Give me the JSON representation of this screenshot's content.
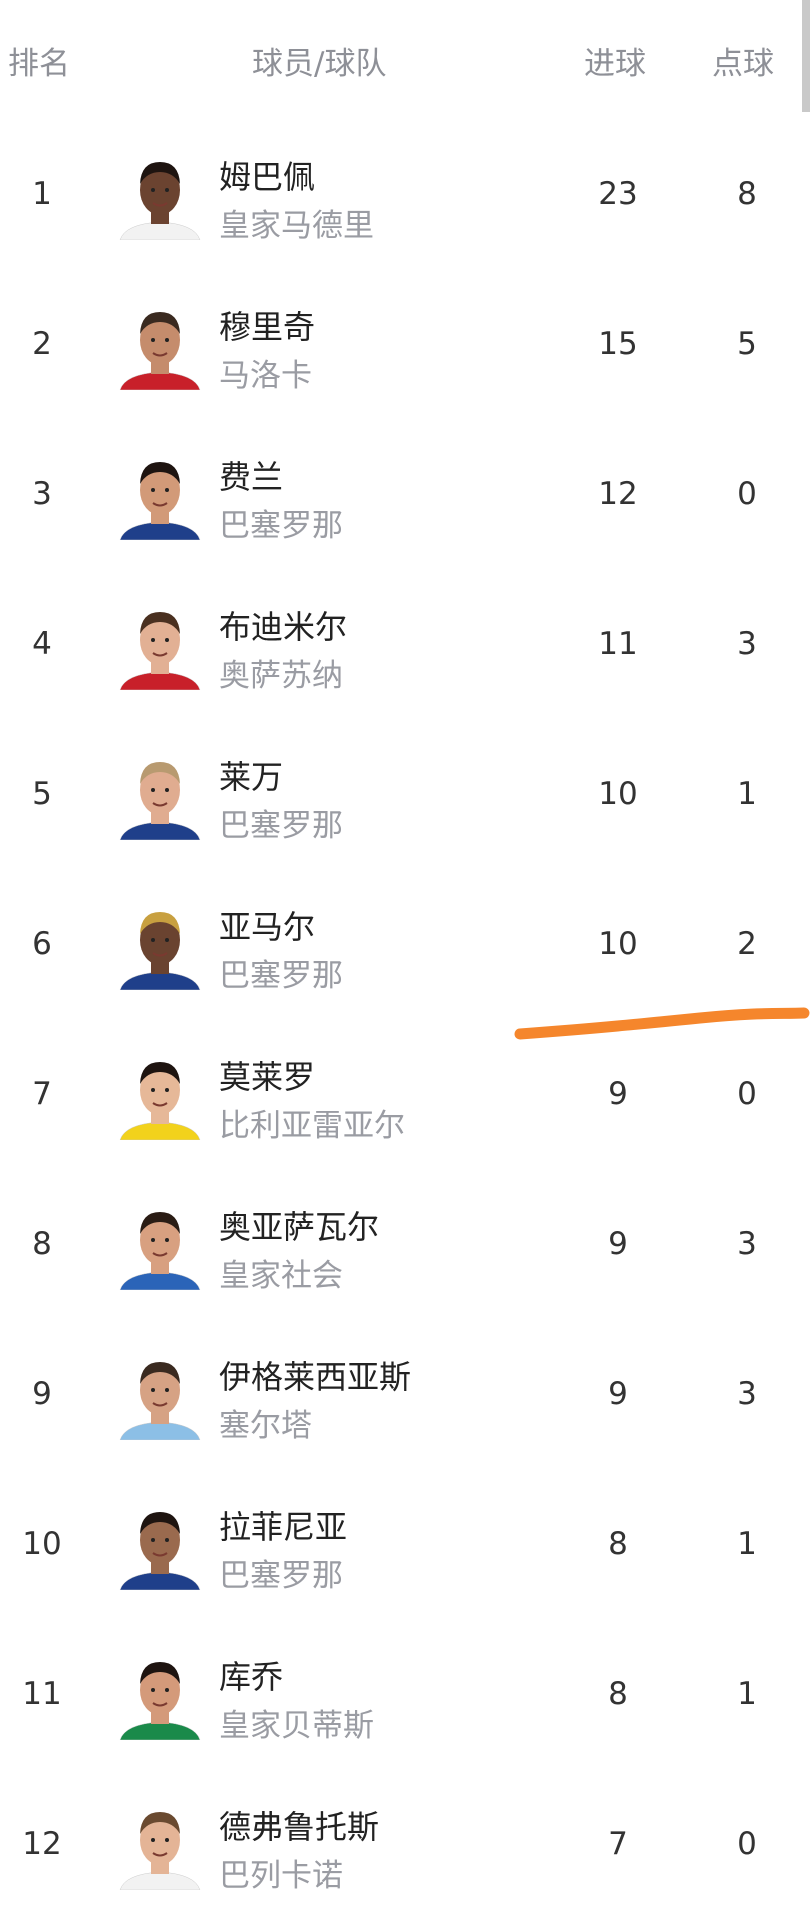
{
  "header": {
    "rank": "排名",
    "player_team": "球员/球队",
    "goals": "进球",
    "penalties": "点球"
  },
  "annotation_color": "#f5862c",
  "rows": [
    {
      "rank": "1",
      "name": "姆巴佩",
      "team": "皇家马德里",
      "goals": "23",
      "penalties": "8",
      "jersey": "#f2f2f2",
      "skin": "#6b4330",
      "hair": "#1e1410"
    },
    {
      "rank": "2",
      "name": "穆里奇",
      "team": "马洛卡",
      "goals": "15",
      "penalties": "5",
      "jersey": "#c8202a",
      "skin": "#c58c6c",
      "hair": "#3a2a20"
    },
    {
      "rank": "3",
      "name": "费兰",
      "team": "巴塞罗那",
      "goals": "12",
      "penalties": "0",
      "jersey": "#1f3f8a",
      "skin": "#d29a78",
      "hair": "#1e1410"
    },
    {
      "rank": "4",
      "name": "布迪米尔",
      "team": "奥萨苏纳",
      "goals": "11",
      "penalties": "3",
      "jersey": "#c8202a",
      "skin": "#e2b094",
      "hair": "#4a3020"
    },
    {
      "rank": "5",
      "name": "莱万",
      "team": "巴塞罗那",
      "goals": "10",
      "penalties": "1",
      "jersey": "#1f3f8a",
      "skin": "#e0ac90",
      "hair": "#b89a70"
    },
    {
      "rank": "6",
      "name": "亚马尔",
      "team": "巴塞罗那",
      "goals": "10",
      "penalties": "2",
      "jersey": "#1f3f8a",
      "skin": "#6a4330",
      "hair": "#c8a040"
    },
    {
      "rank": "7",
      "name": "莫莱罗",
      "team": "比利亚雷亚尔",
      "goals": "9",
      "penalties": "0",
      "jersey": "#f2d21c",
      "skin": "#e6b898",
      "hair": "#1e1410"
    },
    {
      "rank": "8",
      "name": "奥亚萨瓦尔",
      "team": "皇家社会",
      "goals": "9",
      "penalties": "3",
      "jersey": "#2b64b8",
      "skin": "#d8a080",
      "hair": "#2a1c14"
    },
    {
      "rank": "9",
      "name": "伊格莱西亚斯",
      "team": "塞尔塔",
      "goals": "9",
      "penalties": "3",
      "jersey": "#8cbfe6",
      "skin": "#d6a284",
      "hair": "#3a2a20"
    },
    {
      "rank": "10",
      "name": "拉菲尼亚",
      "team": "巴塞罗那",
      "goals": "8",
      "penalties": "1",
      "jersey": "#1f3f8a",
      "skin": "#9a6a4e",
      "hair": "#1e1410"
    },
    {
      "rank": "11",
      "name": "库乔",
      "team": "皇家贝蒂斯",
      "goals": "8",
      "penalties": "1",
      "jersey": "#1a8a4a",
      "skin": "#d49a7a",
      "hair": "#1e1410"
    },
    {
      "rank": "12",
      "name": "德弗鲁托斯",
      "team": "巴列卡诺",
      "goals": "7",
      "penalties": "0",
      "jersey": "#f2f2f2",
      "skin": "#e4b496",
      "hair": "#6a4a30"
    }
  ]
}
